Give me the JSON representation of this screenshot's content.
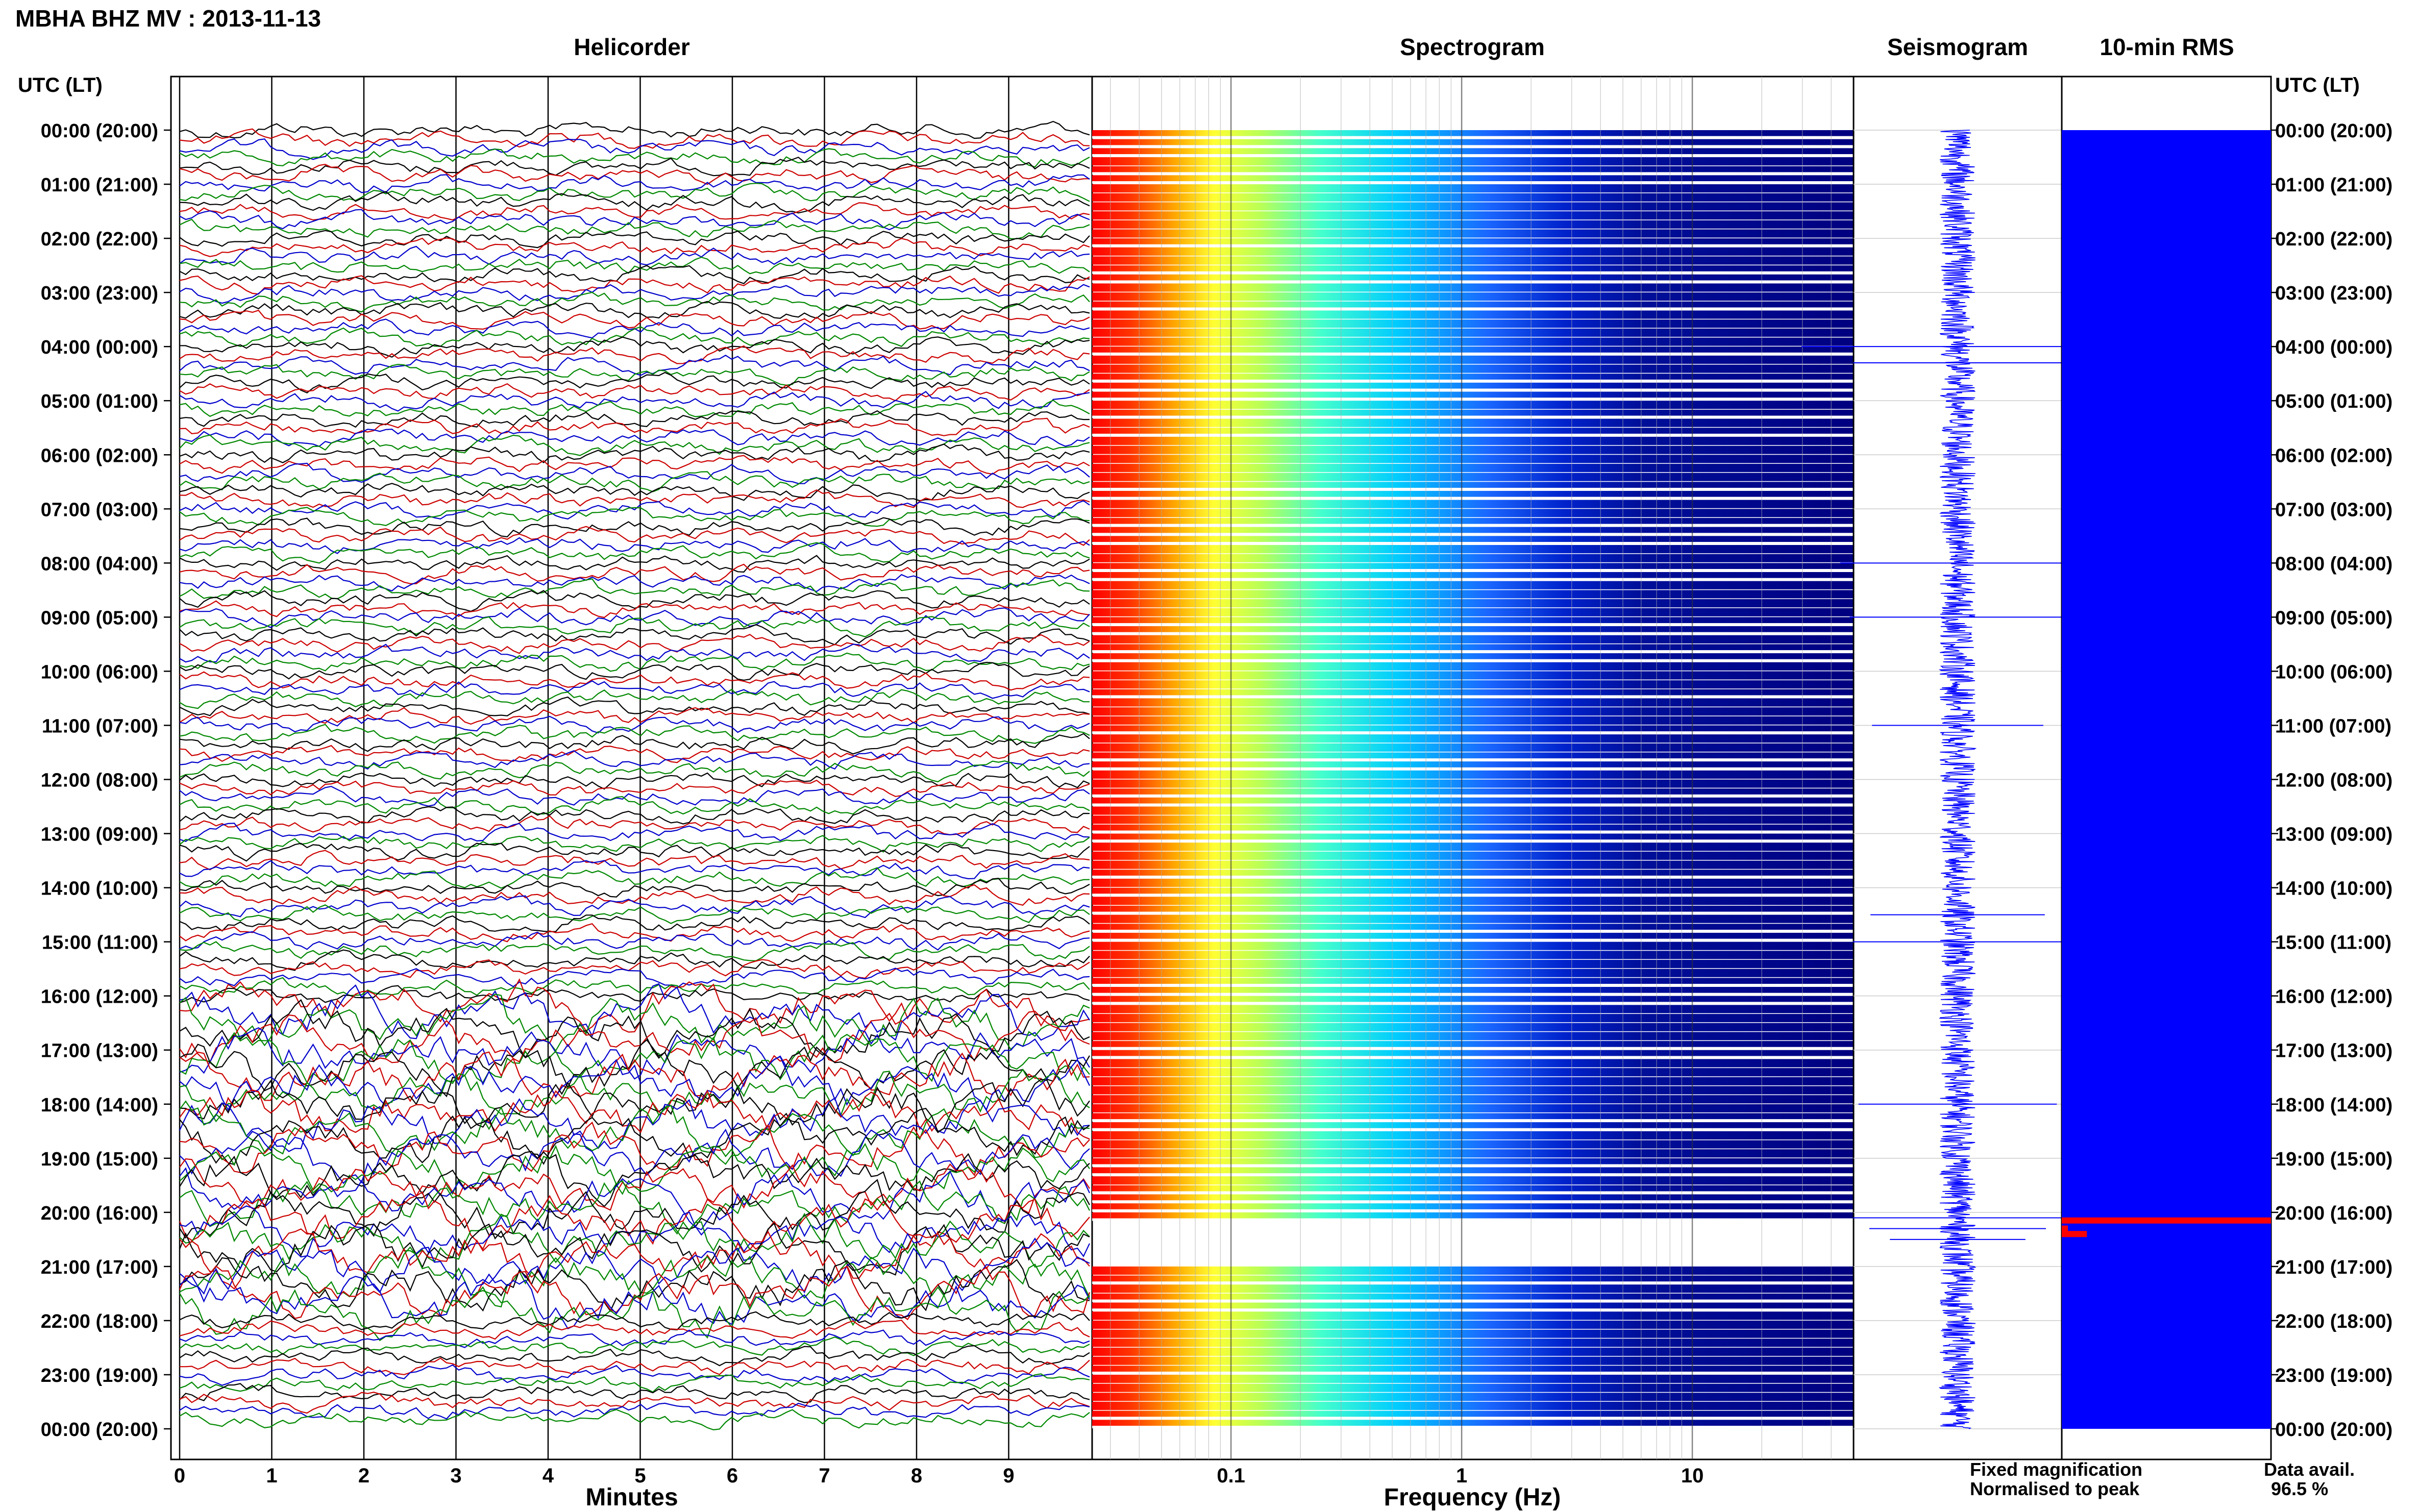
{
  "header": {
    "station_title": "MBHA BHZ MV : 2013-11-13",
    "time_header_left": "UTC (LT)",
    "time_header_right": "UTC (LT)"
  },
  "panels": {
    "helicorder_title": "Helicorder",
    "spectrogram_title": "Spectrogram",
    "seismogram_title": "Seismogram",
    "rms_title": "10-min RMS"
  },
  "time_labels": [
    "00:00 (20:00)",
    "01:00 (21:00)",
    "02:00 (22:00)",
    "03:00 (23:00)",
    "04:00 (00:00)",
    "05:00 (01:00)",
    "06:00 (02:00)",
    "07:00 (03:00)",
    "08:00 (04:00)",
    "09:00 (05:00)",
    "10:00 (06:00)",
    "11:00 (07:00)",
    "12:00 (08:00)",
    "13:00 (09:00)",
    "14:00 (10:00)",
    "15:00 (11:00)",
    "16:00 (12:00)",
    "17:00 (13:00)",
    "18:00 (14:00)",
    "19:00 (15:00)",
    "20:00 (16:00)",
    "21:00 (17:00)",
    "22:00 (18:00)",
    "23:00 (19:00)",
    "00:00 (20:00)"
  ],
  "footer": {
    "legend_fixed": "Fixed magnification",
    "legend_normalised": "Normalised to peak",
    "data_avail_label": "Data avail.",
    "data_avail_value": "96.5 %"
  },
  "colors": {
    "fixed_magnification": "#0000ff",
    "normalised_to_peak": "#ff0000",
    "rms_fill": "#0000ff",
    "rms_peak": "#ff0000",
    "trace_cycle": [
      "#000000",
      "#cc0000",
      "#0000cc",
      "#008800"
    ]
  },
  "chart_data": [
    {
      "type": "line",
      "panel": "Helicorder",
      "xlabel": "Minutes",
      "x_ticks": [
        "0",
        "1",
        "2",
        "3",
        "4",
        "5",
        "6",
        "7",
        "8",
        "9"
      ],
      "xlim": [
        0,
        10
      ],
      "rows": 144,
      "minutes_per_row": 10,
      "note_large_events_hours_utc": [
        17,
        18,
        19,
        20,
        21
      ]
    },
    {
      "type": "heatmap",
      "panel": "Spectrogram",
      "xlabel": "Frequency (Hz)",
      "x_ticks": [
        "0.1",
        "1",
        "10"
      ],
      "xscale": "log",
      "xlim": [
        0.025,
        50
      ],
      "colormap": "jet",
      "data_gaps_hours_utc": [
        [
          20.1,
          21.0
        ]
      ]
    },
    {
      "type": "line",
      "panel": "Seismogram",
      "amplitude_spikes_hours_utc": [
        4.0,
        4.3,
        8.0,
        9.0,
        11.0,
        14.5,
        15.0,
        18.0,
        20.1,
        20.3,
        20.5
      ]
    },
    {
      "type": "bar",
      "panel": "10-min RMS",
      "baseline_fraction": 1.0,
      "peak_events": [
        {
          "hour_utc": 20.15,
          "level": 1.0
        },
        {
          "hour_utc": 20.3,
          "level": 0.02
        },
        {
          "hour_utc": 20.4,
          "level": 0.12
        }
      ]
    }
  ]
}
